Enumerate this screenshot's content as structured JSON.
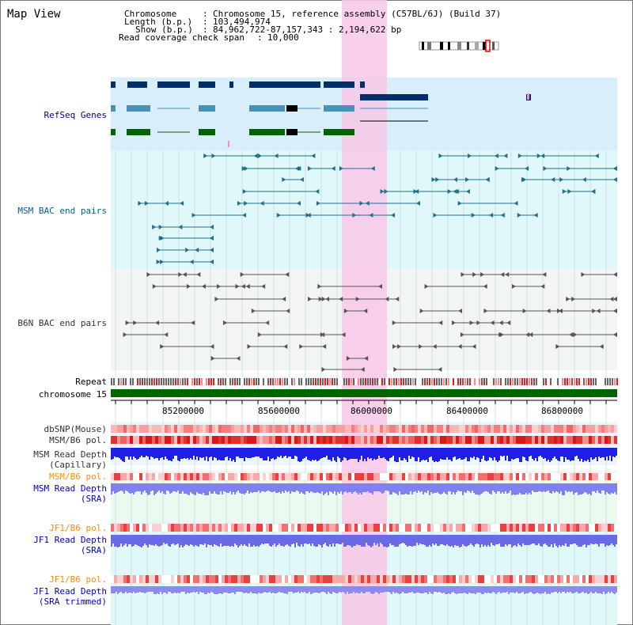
{
  "title": "Map View",
  "info": {
    "chromosome_key": "Chromosome    ",
    "chromosome_value": "Chromosome 15, reference assembly (C57BL/6J) (Build 37)",
    "length_key": "Length (b.p.)",
    "length_value": "103,494,974",
    "show_key": "Show (b.p.)",
    "show_value": "84,962,722-87,157,343 : 2,194,622 bp",
    "coverage_key": "Read coverage check span",
    "coverage_value": "10,000"
  },
  "tracks": {
    "refseq": "RefSeq Genes",
    "msm_bac": "MSM BAC end pairs",
    "b6n_bac": "B6N BAC end pairs",
    "repeat": "Repeat",
    "chromosome": "chromosome 15",
    "dbsnp": "dbSNP(Mouse)",
    "msm_b6_pol_1": "MSM/B6 pol.",
    "msm_depth_cap_1": "MSM Read Depth",
    "msm_depth_cap_2": "(Capillary)",
    "msm_b6_pol_2": "MSM/B6 pol.",
    "msm_depth_sra_1": "MSM Read Depth",
    "msm_depth_sra_2": "(SRA)",
    "jf1_b6_pol_1": "JF1/B6 pol.",
    "jf1_depth_sra_1": "JF1 Read Depth",
    "jf1_depth_sra_2": "(SRA)",
    "jf1_b6_pol_2": "JF1/B6 pol.",
    "jf1_depth_trim_1": "JF1 Read Depth",
    "jf1_depth_trim_2": "(SRA trimmed)"
  },
  "axis_ticks": [
    "85200000",
    "85600000",
    "86000000",
    "86400000",
    "86800000"
  ],
  "colors": {
    "refseq_label": "#00008b",
    "bac_label": "#005f8c",
    "gray_label": "#333333",
    "orange_label": "#ff8c00",
    "blue_label": "#0000cd",
    "highlight": "#f8c8e8"
  }
}
